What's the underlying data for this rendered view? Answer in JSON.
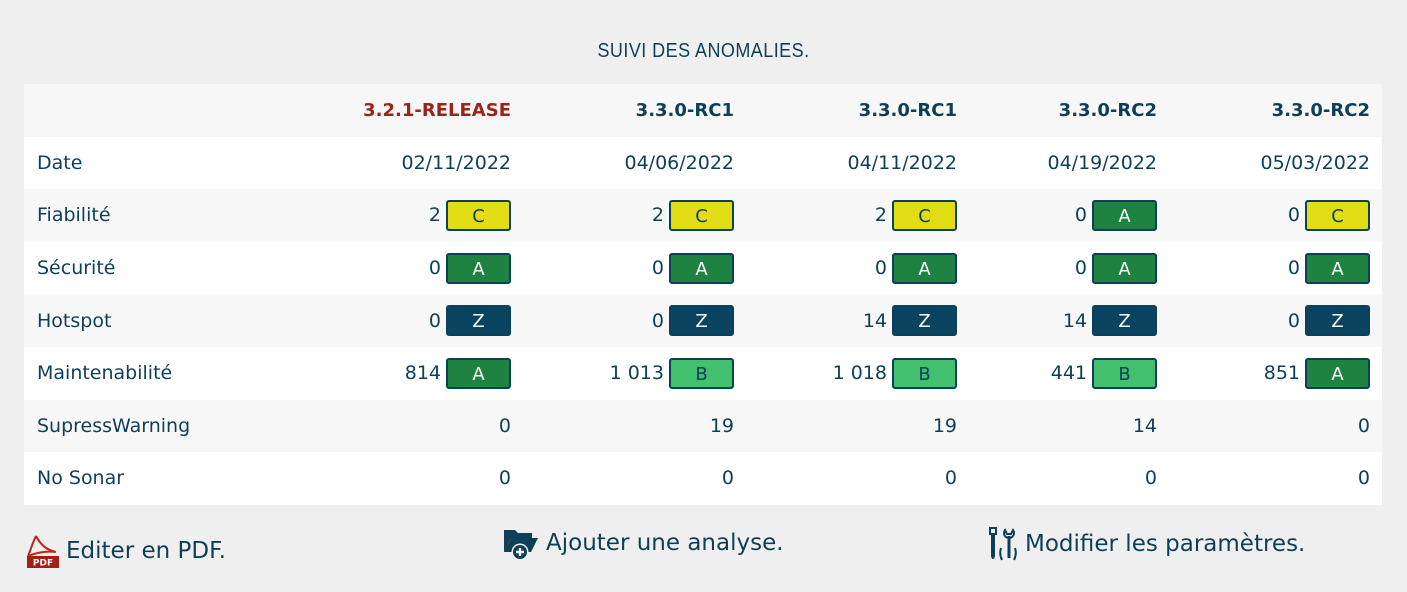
{
  "title": "SUIVI DES ANOMALIES.",
  "columns": [
    {
      "label": "3.2.1-RELEASE",
      "release": true
    },
    {
      "label": "3.3.0-RC1",
      "release": false
    },
    {
      "label": "3.3.0-RC1",
      "release": false
    },
    {
      "label": "3.3.0-RC2",
      "release": false
    },
    {
      "label": "3.3.0-RC2",
      "release": false
    }
  ],
  "rows": [
    {
      "label": "Date",
      "cells": [
        {
          "value": "02/11/2022"
        },
        {
          "value": "04/06/2022"
        },
        {
          "value": "04/11/2022"
        },
        {
          "value": "04/19/2022"
        },
        {
          "value": "05/03/2022"
        }
      ]
    },
    {
      "label": "Fiabilité",
      "cells": [
        {
          "value": "2",
          "grade": "C"
        },
        {
          "value": "2",
          "grade": "C"
        },
        {
          "value": "2",
          "grade": "C"
        },
        {
          "value": "0",
          "grade": "A"
        },
        {
          "value": "0",
          "grade": "C"
        }
      ]
    },
    {
      "label": "Sécurité",
      "cells": [
        {
          "value": "0",
          "grade": "A"
        },
        {
          "value": "0",
          "grade": "A"
        },
        {
          "value": "0",
          "grade": "A"
        },
        {
          "value": "0",
          "grade": "A"
        },
        {
          "value": "0",
          "grade": "A"
        }
      ]
    },
    {
      "label": "Hotspot",
      "cells": [
        {
          "value": "0",
          "grade": "Z"
        },
        {
          "value": "0",
          "grade": "Z"
        },
        {
          "value": "14",
          "grade": "Z"
        },
        {
          "value": "14",
          "grade": "Z"
        },
        {
          "value": "0",
          "grade": "Z"
        }
      ]
    },
    {
      "label": "Maintenabilité",
      "cells": [
        {
          "value": "814",
          "grade": "A"
        },
        {
          "value": "1 013",
          "grade": "B"
        },
        {
          "value": "1 018",
          "grade": "B"
        },
        {
          "value": "441",
          "grade": "B"
        },
        {
          "value": "851",
          "grade": "A"
        }
      ]
    },
    {
      "label": "SupressWarning",
      "cells": [
        {
          "value": "0"
        },
        {
          "value": "19"
        },
        {
          "value": "19"
        },
        {
          "value": "14"
        },
        {
          "value": "0"
        }
      ]
    },
    {
      "label": "No Sonar",
      "cells": [
        {
          "value": "0"
        },
        {
          "value": "0"
        },
        {
          "value": "0"
        },
        {
          "value": "0"
        },
        {
          "value": "0"
        }
      ]
    }
  ],
  "grade_colors": {
    "A": "#1e8240",
    "B": "#42c06e",
    "C": "#e2dc14",
    "Z": "#0b4460"
  },
  "actions": {
    "pdf": {
      "label": "Editer en PDF.",
      "icon": "pdf-icon",
      "icon_text": "PDF"
    },
    "add": {
      "label": "Ajouter une analyse.",
      "icon": "folder-add-icon"
    },
    "settings": {
      "label": "Modifier les paramètres.",
      "icon": "tools-icon"
    }
  }
}
